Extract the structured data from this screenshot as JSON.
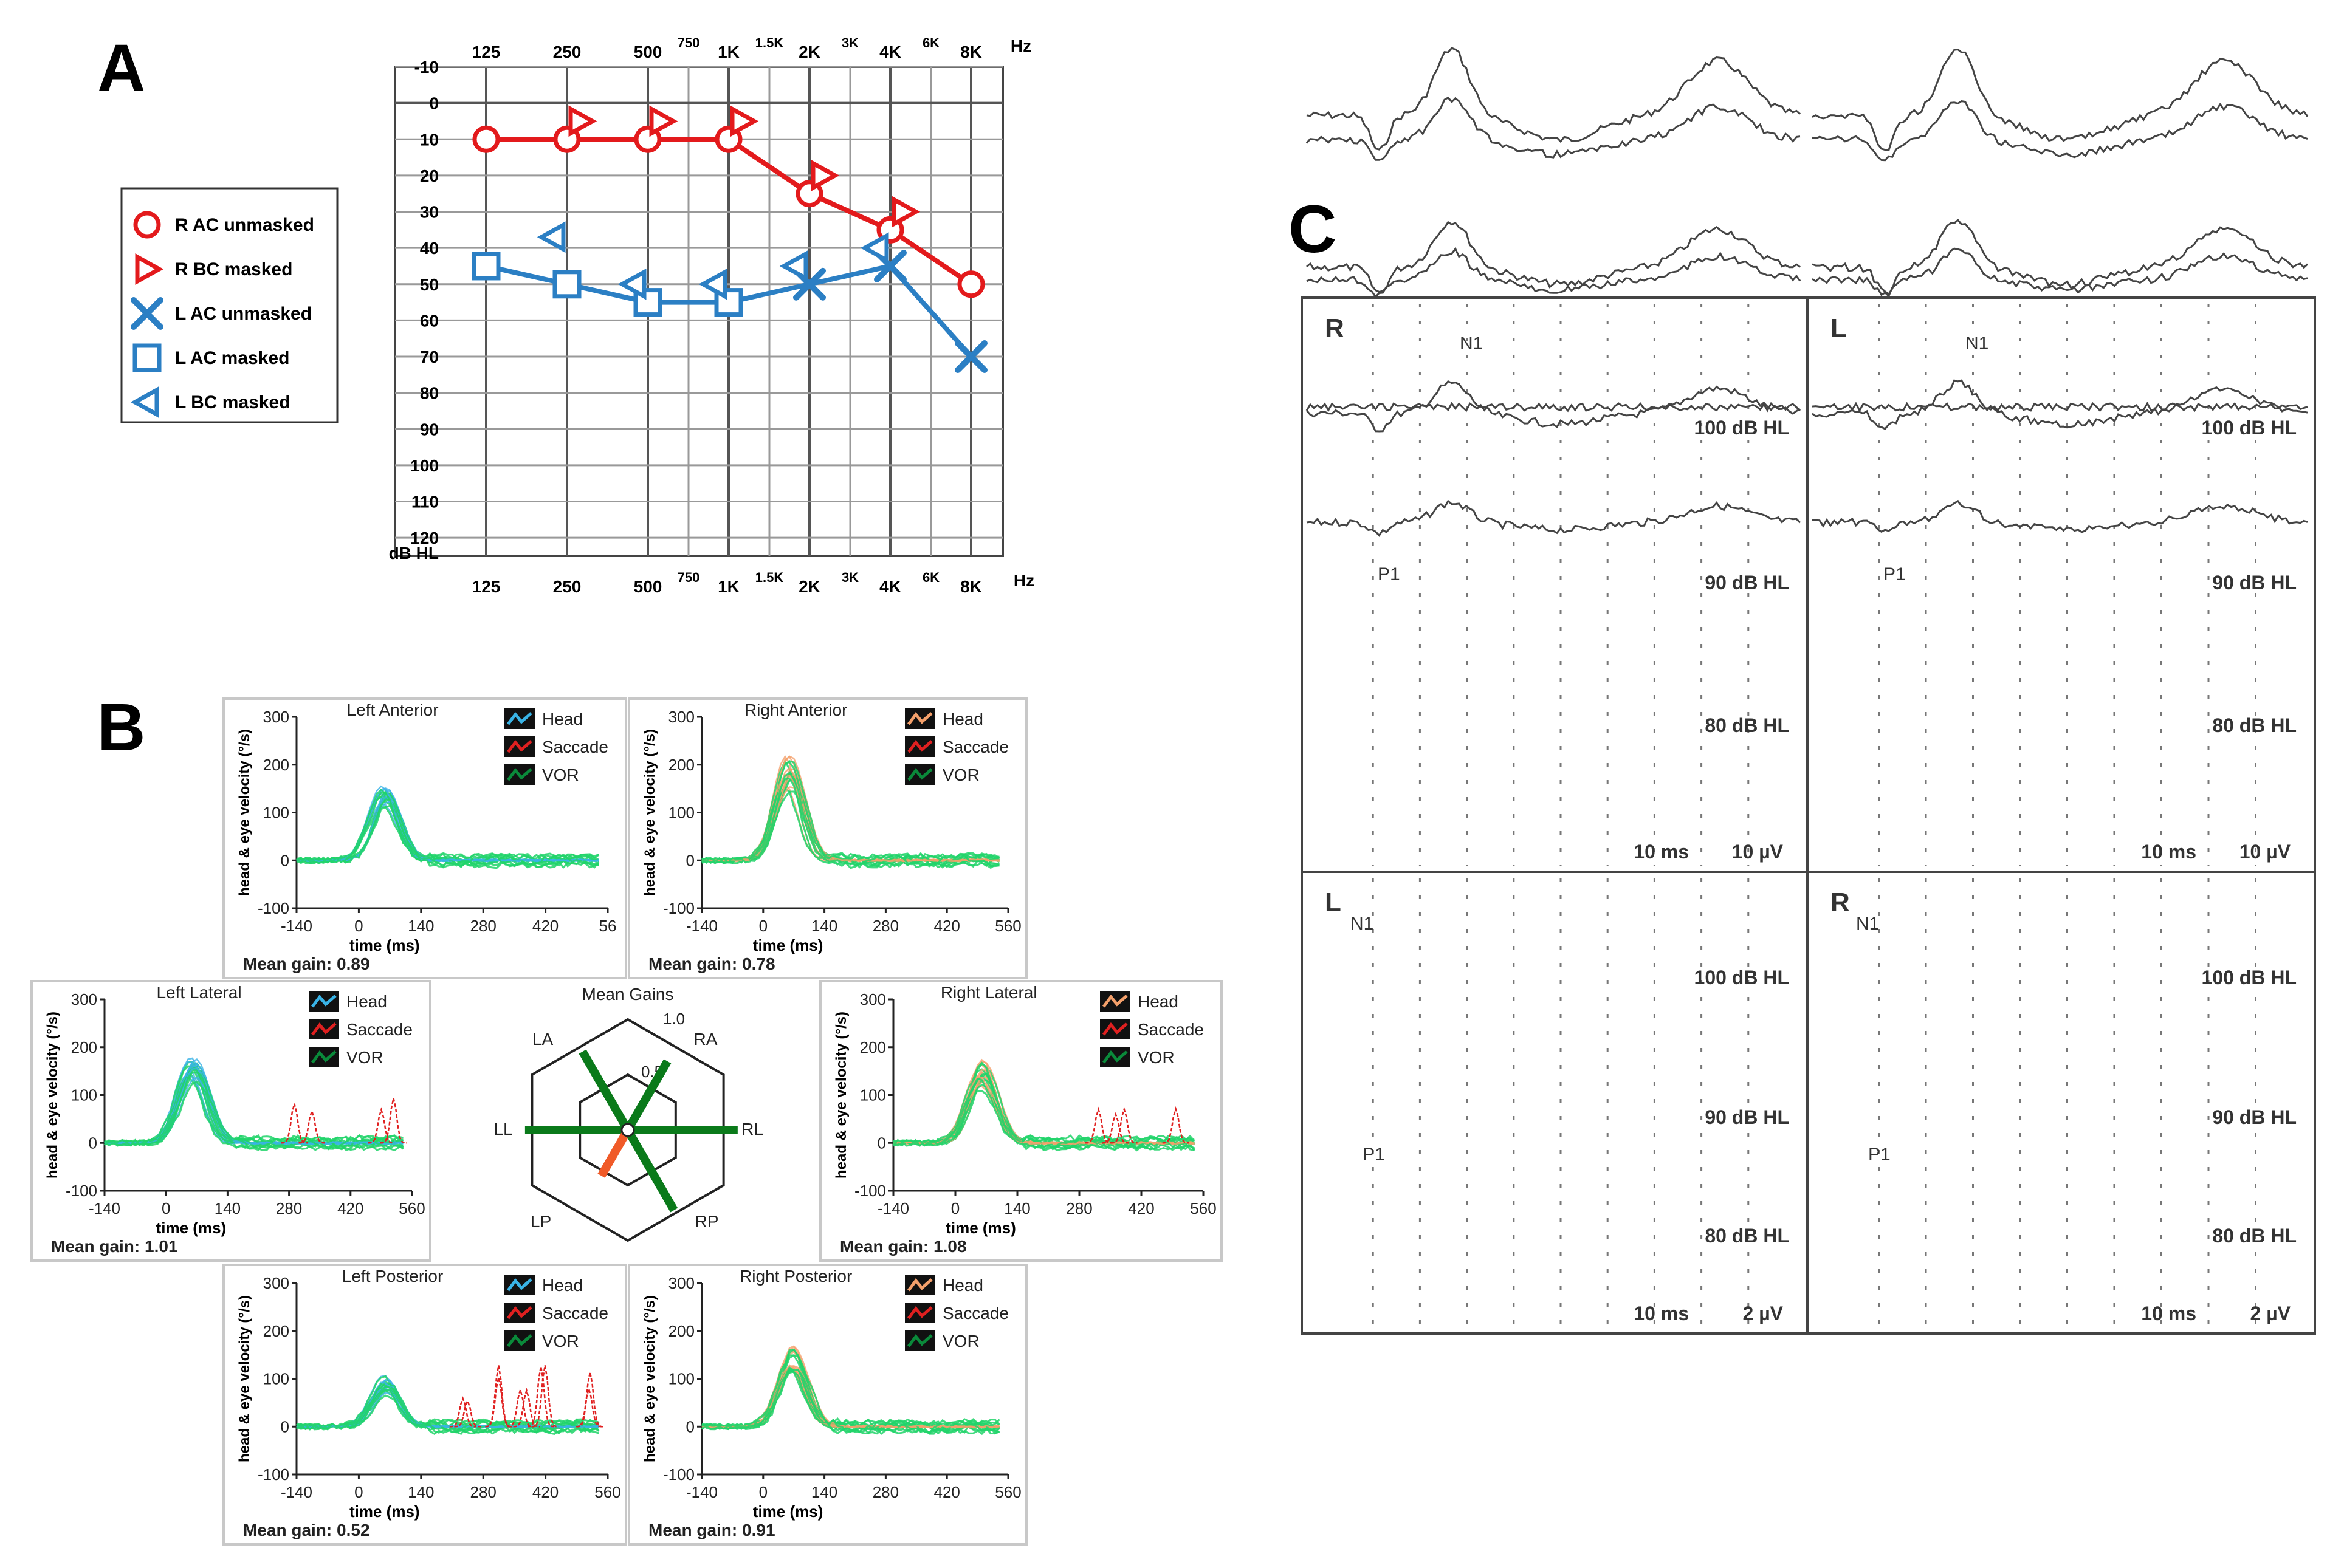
{
  "panels": [
    {
      "label": "A"
    },
    {
      "label": "B"
    },
    {
      "label": "C"
    }
  ],
  "chart_data": [
    {
      "id": "audiogram",
      "type": "line",
      "x_ticks_top": [
        "125",
        "250",
        "500",
        "750",
        "1K",
        "1.5K",
        "2K",
        "3K",
        "4K",
        "6K",
        "8K"
      ],
      "x_ticks_bottom": [
        "125",
        "250",
        "500",
        "750",
        "1K",
        "1.5K",
        "2K",
        "3K",
        "4K",
        "6K",
        "8K"
      ],
      "x_unit": "Hz",
      "y_ticks": [
        "-10",
        "0",
        "10",
        "20",
        "30",
        "40",
        "50",
        "60",
        "70",
        "80",
        "90",
        "100",
        "110",
        "120"
      ],
      "y_unit": "dB HL",
      "ylim": [
        -10,
        125
      ],
      "grid": true,
      "colors": {
        "right": "#e31a1c",
        "left": "#2b7fc4"
      },
      "legend": [
        {
          "label": "R AC unmasked",
          "marker": "circle",
          "color": "#e31a1c"
        },
        {
          "label": "R BC masked",
          "marker": "triangle-right",
          "color": "#e31a1c"
        },
        {
          "label": "L AC unmasked",
          "marker": "x",
          "color": "#2b7fc4"
        },
        {
          "label": "L AC masked",
          "marker": "square",
          "color": "#2b7fc4"
        },
        {
          "label": "L BC masked",
          "marker": "triangle-left",
          "color": "#2b7fc4"
        }
      ],
      "series": [
        {
          "name": "R AC unmasked",
          "marker": "circle",
          "color": "#e31a1c",
          "connected": true,
          "points": [
            [
              "125",
              10
            ],
            [
              "250",
              10
            ],
            [
              "500",
              10
            ],
            [
              "1K",
              10
            ],
            [
              "2K",
              25
            ],
            [
              "4K",
              35
            ],
            [
              "8K",
              50
            ]
          ]
        },
        {
          "name": "R BC masked",
          "marker": "triangle-right",
          "color": "#e31a1c",
          "connected": false,
          "points": [
            [
              "250",
              5
            ],
            [
              "500",
              5
            ],
            [
              "1K",
              5
            ],
            [
              "2K",
              20
            ],
            [
              "4K",
              30
            ]
          ]
        },
        {
          "name": "L AC masked / unmasked",
          "marker": "mixed",
          "color": "#2b7fc4",
          "connected": true,
          "points": [
            [
              "125",
              45,
              "square"
            ],
            [
              "250",
              50,
              "square"
            ],
            [
              "500",
              55,
              "square"
            ],
            [
              "1K",
              55,
              "square"
            ],
            [
              "2K",
              50,
              "x"
            ],
            [
              "4K",
              45,
              "x"
            ],
            [
              "8K",
              70,
              "x"
            ]
          ]
        },
        {
          "name": "L BC masked",
          "marker": "triangle-left",
          "color": "#2b7fc4",
          "connected": false,
          "points": [
            [
              "250",
              37
            ],
            [
              "500",
              50
            ],
            [
              "1K",
              50
            ],
            [
              "2K",
              45
            ],
            [
              "4K",
              40
            ]
          ]
        }
      ]
    },
    {
      "id": "vhit",
      "type": "line",
      "ylabel": "head & eye velocity (°/s)",
      "xlabel": "time (ms)",
      "y_ticks": [
        "300",
        "200",
        "100",
        "0",
        "-100"
      ],
      "x_ticks": [
        "-140",
        "0",
        "140",
        "280",
        "420",
        "560"
      ],
      "colors": {
        "head_left": "#39b3e6",
        "head_right": "#f4a06b",
        "saccade": "#e02020",
        "vor": "#21d46a",
        "vor_dark": "#0a8a3a"
      },
      "legend": [
        "Head",
        "Saccade",
        "VOR"
      ],
      "plots": [
        {
          "title": "Left Anterior",
          "gain_text": "Mean gain: 0.89",
          "head": "head_left",
          "last_tick": "56",
          "peak": 140,
          "saccades": false
        },
        {
          "title": "Right Anterior",
          "gain_text": "Mean gain: 0.78",
          "head": "head_right",
          "last_tick": "560",
          "peak": 185,
          "saccades": false
        },
        {
          "title": "Left Lateral",
          "gain_text": "Mean gain: 1.01",
          "head": "head_left",
          "last_tick": "560",
          "peak": 160,
          "saccades": true
        },
        {
          "title": "Right Lateral",
          "gain_text": "Mean gain: 1.08",
          "head": "head_right",
          "last_tick": "560",
          "peak": 150,
          "saccades": true
        },
        {
          "title": "Left Posterior",
          "gain_text": "Mean gain: 0.52",
          "head": "head_left",
          "last_tick": "560",
          "peak": 90,
          "saccades": true
        },
        {
          "title": "Right Posterior",
          "gain_text": "Mean gain: 0.91",
          "head": "head_right",
          "last_tick": "560",
          "peak": 140,
          "saccades": false
        }
      ],
      "mean_gains": {
        "title": "Mean Gains",
        "tick_labels": [
          "1.0",
          "0.5"
        ],
        "axes": [
          "LA",
          "RA",
          "LL",
          "RL",
          "LP",
          "RP"
        ],
        "gains": {
          "LA": 0.89,
          "RA": 0.78,
          "LL": 1.01,
          "RL": 1.08,
          "LP": 0.52,
          "RP": 0.91
        },
        "colors": {
          "normal": "#0a7a1a",
          "low": "#f05a28"
        }
      }
    },
    {
      "id": "abr",
      "type": "line",
      "panels": [
        {
          "side": "R",
          "levels": [
            "100 dB HL",
            "90 dB HL",
            "80 dB HL"
          ],
          "scale_time": "10 ms",
          "scale_amp": "10 µV",
          "peaks": [
            "N1",
            "P1"
          ]
        },
        {
          "side": "L",
          "levels": [
            "100 dB HL",
            "90 dB HL",
            "80 dB HL"
          ],
          "scale_time": "10 ms",
          "scale_amp": "10 µV",
          "peaks": [
            "N1",
            "P1"
          ]
        },
        {
          "side": "L",
          "levels": [
            "100 dB HL",
            "90 dB HL",
            "80 dB HL"
          ],
          "scale_time": "10 ms",
          "scale_amp": "2 µV",
          "peaks": [
            "N1",
            "P1"
          ]
        },
        {
          "side": "R",
          "levels": [
            "100 dB HL",
            "90 dB HL",
            "80 dB HL"
          ],
          "scale_time": "10 ms",
          "scale_amp": "2 µV",
          "peaks": [
            "N1",
            "P1"
          ]
        }
      ]
    }
  ]
}
